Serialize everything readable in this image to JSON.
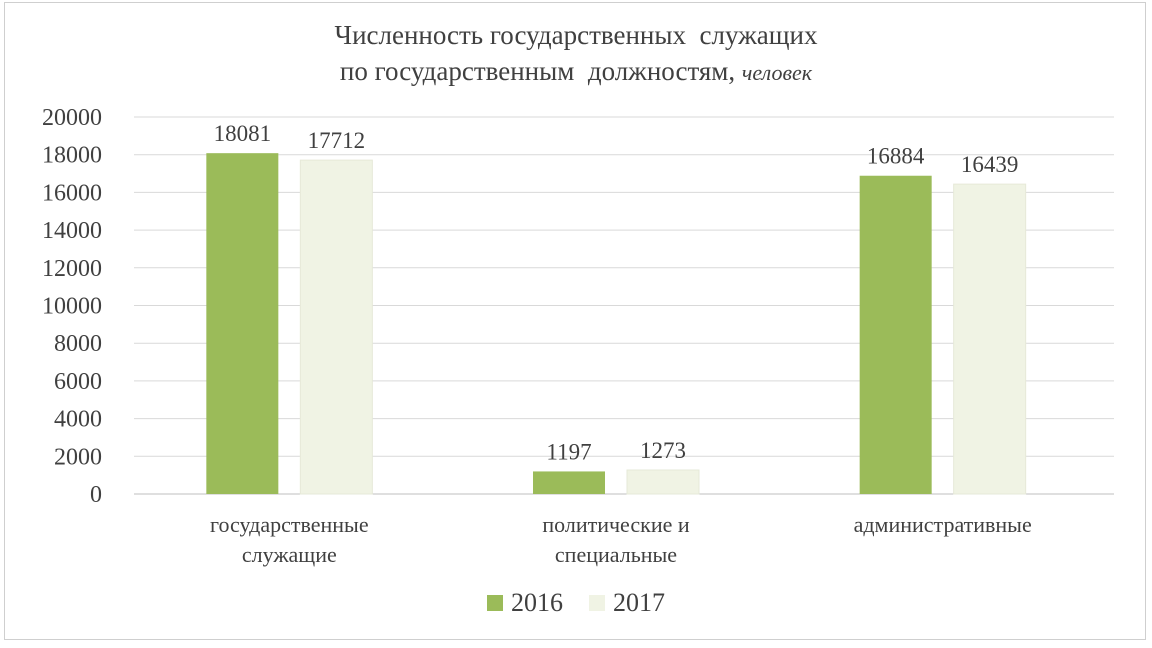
{
  "chart_data": {
    "type": "bar",
    "title_line1": "Численность государственных  служащих",
    "title_line2": "по государственным  должностям,",
    "title_unit": "человек",
    "categories": [
      [
        "государственные",
        "служащие"
      ],
      [
        "политические и",
        "специальные"
      ],
      [
        "административные"
      ]
    ],
    "series": [
      {
        "name": "2016",
        "values": [
          18081,
          1197,
          16884
        ],
        "color": "#9bbb59"
      },
      {
        "name": "2017",
        "values": [
          17712,
          1273,
          16439
        ],
        "color": "#f0f3e4"
      }
    ],
    "yticks": [
      "0",
      "2000",
      "4000",
      "6000",
      "8000",
      "10000",
      "12000",
      "14000",
      "16000",
      "18000",
      "20000"
    ],
    "ylim": [
      0,
      20000
    ],
    "grid": true,
    "legend_position": "bottom"
  }
}
